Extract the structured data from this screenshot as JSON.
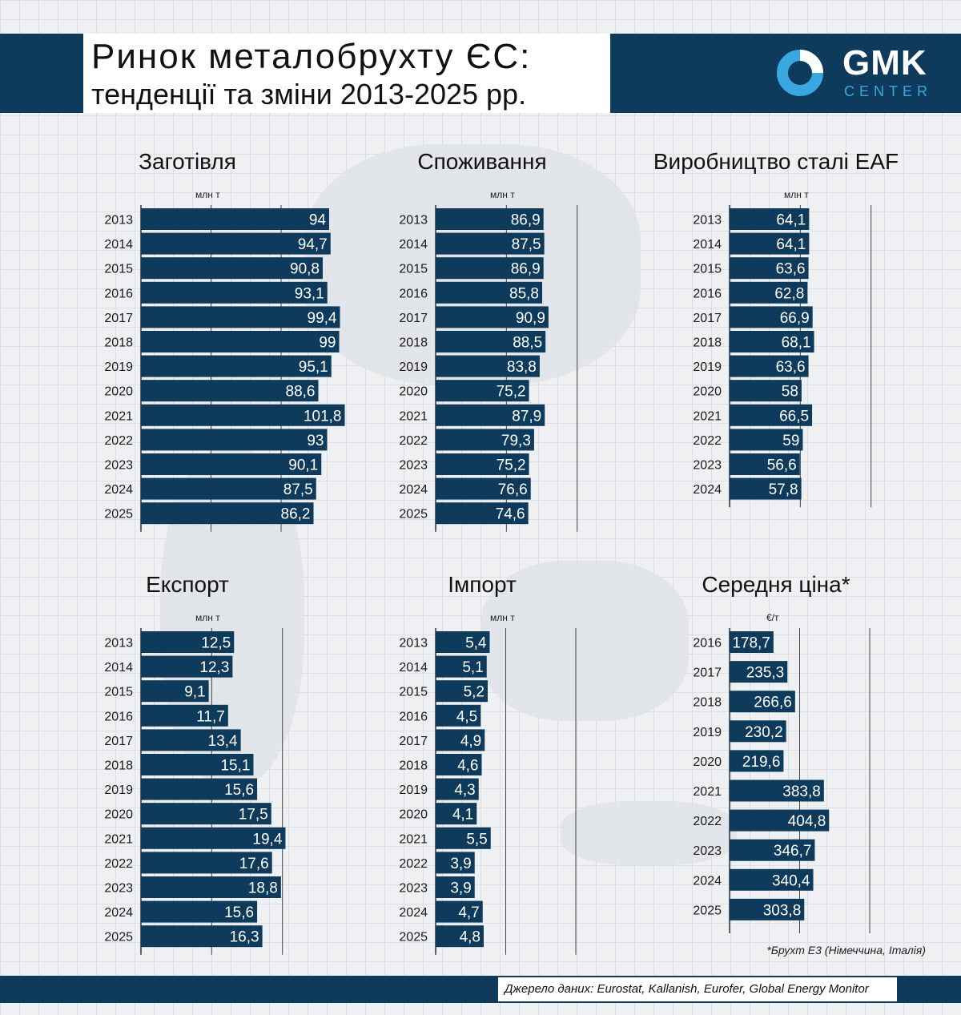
{
  "header": {
    "title_line1": "Ринок металобрухту ЄС:",
    "title_line2": "тенденції та зміни 2013-2025 рр.",
    "logo_text": "GMK",
    "logo_sub": "CENTER"
  },
  "colors": {
    "bar": "#0e3a5c",
    "header": "#0e3a5c",
    "logo_accent": "#3aa8e0"
  },
  "footnote": "*Брухт Е3 (Німеччина, Італія)",
  "source": "Джерело даних: Eurostat, Kallanish, Eurofer, Global Energy Monitor",
  "chart_data": [
    {
      "type": "bar",
      "title": "Заготівля",
      "unit": "млн т",
      "categories": [
        "2013",
        "2014",
        "2015",
        "2016",
        "2017",
        "2018",
        "2019",
        "2020",
        "2021",
        "2022",
        "2023",
        "2024",
        "2025"
      ],
      "values": [
        94,
        94.7,
        90.8,
        93.1,
        99.4,
        99,
        95.1,
        88.6,
        101.8,
        93,
        90.1,
        87.5,
        86.2
      ],
      "labels": [
        "94",
        "94,7",
        "90,8",
        "93,1",
        "99,4",
        "99",
        "95,1",
        "88,6",
        "101,8",
        "93",
        "90,1",
        "87,5",
        "86,2"
      ]
    },
    {
      "type": "bar",
      "title": "Споживання",
      "unit": "млн т",
      "categories": [
        "2013",
        "2014",
        "2015",
        "2016",
        "2017",
        "2018",
        "2019",
        "2020",
        "2021",
        "2022",
        "2023",
        "2024",
        "2025"
      ],
      "values": [
        86.9,
        87.5,
        86.9,
        85.8,
        90.9,
        88.5,
        83.8,
        75.2,
        87.9,
        79.3,
        75.2,
        76.6,
        74.6
      ],
      "labels": [
        "86,9",
        "87,5",
        "86,9",
        "85,8",
        "90,9",
        "88,5",
        "83,8",
        "75,2",
        "87,9",
        "79,3",
        "75,2",
        "76,6",
        "74,6"
      ]
    },
    {
      "type": "bar",
      "title": "Виробництво сталі EAF",
      "unit": "млн т",
      "categories": [
        "2013",
        "2014",
        "2015",
        "2016",
        "2017",
        "2018",
        "2019",
        "2020",
        "2021",
        "2022",
        "2023",
        "2024"
      ],
      "values": [
        64.1,
        64.1,
        63.6,
        62.8,
        66.9,
        68.1,
        63.6,
        58,
        66.5,
        59,
        56.6,
        57.8
      ],
      "labels": [
        "64,1",
        "64,1",
        "63,6",
        "62,8",
        "66,9",
        "68,1",
        "63,6",
        "58",
        "66,5",
        "59",
        "56,6",
        "57,8"
      ]
    },
    {
      "type": "bar",
      "title": "Експорт",
      "unit": "млн т",
      "categories": [
        "2013",
        "2014",
        "2015",
        "2016",
        "2017",
        "2018",
        "2019",
        "2020",
        "2021",
        "2022",
        "2023",
        "2024",
        "2025"
      ],
      "values": [
        12.5,
        12.3,
        9.1,
        11.7,
        13.4,
        15.1,
        15.6,
        17.5,
        19.4,
        17.6,
        18.8,
        15.6,
        16.3
      ],
      "labels": [
        "12,5",
        "12,3",
        "9,1",
        "11,7",
        "13,4",
        "15,1",
        "15,6",
        "17,5",
        "19,4",
        "17,6",
        "18,8",
        "15,6",
        "16,3"
      ]
    },
    {
      "type": "bar",
      "title": "Імпорт",
      "unit": "млн т",
      "categories": [
        "2013",
        "2014",
        "2015",
        "2016",
        "2017",
        "2018",
        "2019",
        "2020",
        "2021",
        "2022",
        "2023",
        "2024",
        "2025"
      ],
      "values": [
        5.4,
        5.1,
        5.2,
        4.5,
        4.9,
        4.6,
        4.3,
        4.1,
        5.5,
        3.9,
        3.9,
        4.7,
        4.8
      ],
      "labels": [
        "5,4",
        "5,1",
        "5,2",
        "4,5",
        "4,9",
        "4,6",
        "4,3",
        "4,1",
        "5,5",
        "3,9",
        "3,9",
        "4,7",
        "4,8"
      ]
    },
    {
      "type": "bar",
      "title": "Середня ціна*",
      "unit": "€/т",
      "categories": [
        "2016",
        "2017",
        "2018",
        "2019",
        "2020",
        "2021",
        "2022",
        "2023",
        "2024",
        "2025"
      ],
      "values": [
        178.7,
        235.3,
        266.6,
        230.2,
        219.6,
        383.8,
        404.8,
        346.7,
        340.4,
        303.8
      ],
      "labels": [
        "178,7",
        "235,3",
        "266,6",
        "230,2",
        "219,6",
        "383,8",
        "404,8",
        "346,7",
        "340,4",
        "303,8"
      ]
    }
  ]
}
